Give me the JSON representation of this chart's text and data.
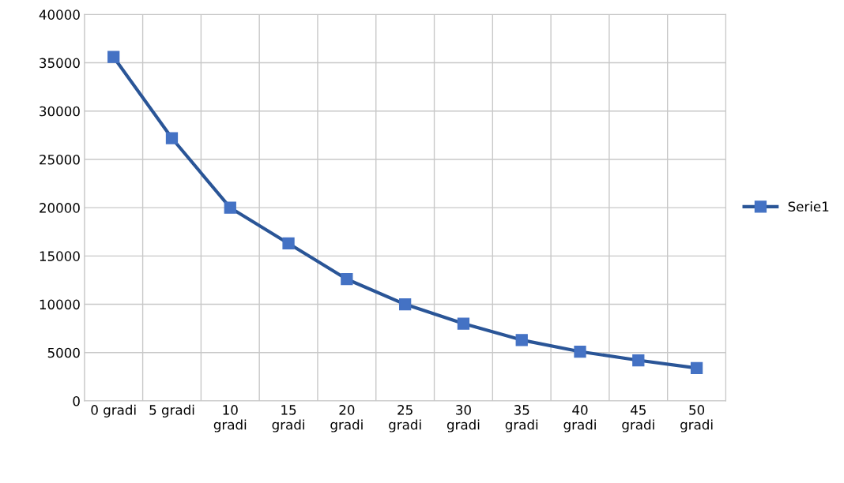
{
  "chart_data": {
    "type": "line",
    "categories": [
      "0 gradi",
      "5 gradi",
      "10 gradi",
      "15 gradi",
      "20 gradi",
      "25 gradi",
      "30 gradi",
      "35 gradi",
      "40 gradi",
      "45 gradi",
      "50 gradi"
    ],
    "series": [
      {
        "name": "Serie1",
        "color": "#2a5597",
        "values": [
          35600,
          27200,
          20000,
          16300,
          12600,
          10000,
          8000,
          6300,
          5100,
          4200,
          3400
        ]
      }
    ],
    "ylim": [
      0,
      40000
    ],
    "yticks": [
      0,
      5000,
      10000,
      15000,
      20000,
      25000,
      30000,
      35000,
      40000
    ],
    "grid": true,
    "legend": "right",
    "marker": "square",
    "line_style": "solid"
  }
}
